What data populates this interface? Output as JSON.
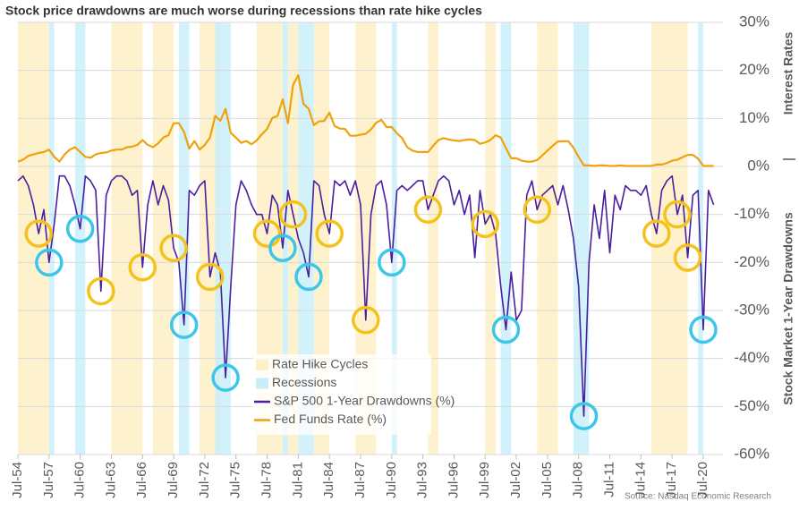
{
  "chart_data": {
    "type": "line",
    "title": "Stock price drawdowns are much worse during recessions than rate hike cycles",
    "source": "Source: Nasdaq Economic Research",
    "y_axis_labels": [
      "Interest Rates",
      "Stock Market 1-Year Drawdowns"
    ],
    "x": [
      "Jul-54",
      "Jan-55",
      "Jul-55",
      "Jan-56",
      "Jul-56",
      "Jan-57",
      "Jul-57",
      "Jan-58",
      "Jul-58",
      "Jan-59",
      "Jul-59",
      "Jan-60",
      "Jul-60",
      "Jan-61",
      "Jul-61",
      "Jan-62",
      "Jul-62",
      "Jan-63",
      "Jul-63",
      "Jan-64",
      "Jul-64",
      "Jan-65",
      "Jul-65",
      "Jan-66",
      "Jul-66",
      "Jan-67",
      "Jul-67",
      "Jan-68",
      "Jul-68",
      "Jan-69",
      "Jul-69",
      "Jan-70",
      "Jul-70",
      "Jan-71",
      "Jul-71",
      "Jan-72",
      "Jul-72",
      "Jan-73",
      "Jul-73",
      "Jan-74",
      "Jul-74",
      "Jan-75",
      "Jul-75",
      "Jan-76",
      "Jul-76",
      "Jan-77",
      "Jul-77",
      "Jan-78",
      "Jul-78",
      "Jan-79",
      "Jul-79",
      "Jan-80",
      "Jul-80",
      "Jan-81",
      "Jul-81",
      "Jan-82",
      "Jul-82",
      "Jan-83",
      "Jul-83",
      "Jan-84",
      "Jul-84",
      "Jan-85",
      "Jul-85",
      "Jan-86",
      "Jul-86",
      "Jan-87",
      "Jul-87",
      "Jan-88",
      "Jul-88",
      "Jan-89",
      "Jul-89",
      "Jan-90",
      "Jul-90",
      "Jan-91",
      "Jul-91",
      "Jan-92",
      "Jul-92",
      "Jan-93",
      "Jul-93",
      "Jan-94",
      "Jul-94",
      "Jan-95",
      "Jul-95",
      "Jan-96",
      "Jul-96",
      "Jan-97",
      "Jul-97",
      "Jan-98",
      "Jul-98",
      "Jan-99",
      "Jul-99",
      "Jan-00",
      "Jul-00",
      "Jan-01",
      "Jul-01",
      "Jan-02",
      "Jul-02",
      "Jan-03",
      "Jul-03",
      "Jan-04",
      "Jul-04",
      "Jan-05",
      "Jul-05",
      "Jan-06",
      "Jul-06",
      "Jan-07",
      "Jul-07",
      "Jan-08",
      "Jul-08",
      "Jan-09",
      "Jul-09",
      "Jan-10",
      "Jul-10",
      "Jan-11",
      "Jul-11",
      "Jan-12",
      "Jul-12",
      "Jan-13",
      "Jul-13",
      "Jan-14",
      "Jul-14",
      "Jan-15",
      "Jul-15",
      "Jan-16",
      "Jul-16",
      "Jan-17",
      "Jul-17",
      "Jan-18",
      "Jul-18",
      "Jan-19",
      "Jul-19",
      "Jan-20",
      "Jul-20",
      "Jan-21",
      "Jul-21"
    ],
    "xticks": [
      "Jul-54",
      "Jul-57",
      "Jul-60",
      "Jul-63",
      "Jul-66",
      "Jul-69",
      "Jul-72",
      "Jul-75",
      "Jul-78",
      "Jul-81",
      "Jul-84",
      "Jul-87",
      "Jul-90",
      "Jul-93",
      "Jul-96",
      "Jul-99",
      "Jul-02",
      "Jul-05",
      "Jul-08",
      "Jul-11",
      "Jul-14",
      "Jul-17",
      "Jul-20"
    ],
    "series": [
      {
        "name": "S&P 500 1-Year Drawdowns (%)",
        "color": "#4a1f9e",
        "values": [
          -3,
          -2,
          -4,
          -8,
          -14,
          -9,
          -20,
          -12,
          -2,
          -2,
          -4,
          -8,
          -13,
          -2,
          -3,
          -5,
          -26,
          -6,
          -3,
          -2,
          -2,
          -3,
          -6,
          -5,
          -21,
          -8,
          -3,
          -8,
          -4,
          -7,
          -17,
          -20,
          -33,
          -5,
          -6,
          -4,
          -3,
          -23,
          -18,
          -22,
          -44,
          -25,
          -8,
          -3,
          -5,
          -8,
          -10,
          -10,
          -14,
          -6,
          -8,
          -17,
          -5,
          -10,
          -15,
          -18,
          -23,
          -3,
          -4,
          -10,
          -14,
          -3,
          -4,
          -3,
          -6,
          -3,
          -8,
          -32,
          -10,
          -4,
          -3,
          -8,
          -20,
          -5,
          -4,
          -5,
          -4,
          -3,
          -3,
          -9,
          -6,
          -3,
          -2,
          -3,
          -8,
          -5,
          -10,
          -6,
          -19,
          -5,
          -12,
          -10,
          -14,
          -25,
          -34,
          -22,
          -32,
          -30,
          -6,
          -3,
          -9,
          -6,
          -5,
          -4,
          -8,
          -4,
          -9,
          -15,
          -25,
          -52,
          -20,
          -8,
          -15,
          -5,
          -18,
          -6,
          -9,
          -4,
          -5,
          -5,
          -6,
          -4,
          -10,
          -14,
          -5,
          -3,
          -2,
          -10,
          -6,
          -19,
          -6,
          -5,
          -34,
          -5,
          -8
        ]
      },
      {
        "name": "Fed Funds Rate (%)",
        "color": "#f0a20c",
        "values": [
          1.0,
          1.4,
          2.2,
          2.5,
          2.8,
          3.0,
          3.5,
          2.0,
          1.0,
          2.5,
          3.5,
          4.0,
          3.0,
          2.0,
          1.8,
          2.5,
          2.8,
          2.9,
          3.3,
          3.5,
          3.5,
          4.0,
          4.1,
          4.5,
          5.5,
          4.5,
          4.0,
          4.8,
          6.0,
          6.5,
          9.0,
          9.0,
          7.2,
          3.7,
          5.3,
          3.5,
          4.5,
          6.0,
          10.5,
          9.5,
          12.0,
          7.0,
          6.0,
          4.9,
          5.3,
          4.6,
          5.4,
          6.7,
          7.8,
          10.1,
          10.5,
          14.0,
          9.0,
          17.0,
          19.0,
          13.0,
          12.0,
          8.6,
          9.4,
          9.5,
          11.2,
          8.4,
          7.9,
          7.8,
          6.4,
          6.4,
          6.6,
          6.8,
          7.7,
          9.1,
          9.7,
          8.2,
          8.2,
          6.9,
          5.9,
          4.0,
          3.3,
          3.0,
          3.0,
          3.0,
          4.3,
          5.5,
          5.9,
          5.6,
          5.4,
          5.3,
          5.5,
          5.6,
          5.5,
          4.7,
          5.0,
          5.5,
          6.5,
          6.0,
          3.8,
          1.7,
          1.7,
          1.2,
          1.0,
          1.0,
          1.3,
          2.3,
          3.3,
          4.3,
          5.2,
          5.25,
          5.25,
          3.9,
          2.0,
          0.2,
          0.2,
          0.1,
          0.2,
          0.2,
          0.1,
          0.1,
          0.2,
          0.1,
          0.1,
          0.1,
          0.1,
          0.1,
          0.1,
          0.4,
          0.4,
          0.7,
          1.2,
          1.4,
          1.9,
          2.4,
          2.4,
          1.6,
          0.1,
          0.1,
          0.1
        ]
      }
    ],
    "bands": [
      {
        "name": "Rate Hike Cycles",
        "color": "#fdf0c4",
        "ranges": [
          [
            "Jul-54",
            "Jul-57"
          ],
          [
            "Jul-63",
            "Jul-66"
          ],
          [
            "Jul-67",
            "Jul-69"
          ],
          [
            "Jan-72",
            "Jan-74"
          ],
          [
            "Jul-77",
            "Jan-80"
          ],
          [
            "Jul-80",
            "Jul-81"
          ],
          [
            "Jan-83",
            "Jul-84"
          ],
          [
            "Jan-87",
            "Jan-89"
          ],
          [
            "Jan-94",
            "Jan-95"
          ],
          [
            "Jul-99",
            "Jul-00"
          ],
          [
            "Jul-04",
            "Jul-06"
          ],
          [
            "Jul-15",
            "Jan-19"
          ]
        ]
      },
      {
        "name": "Recessions",
        "color": "#c9eefa",
        "ranges": [
          [
            "Jul-57",
            "Jan-58"
          ],
          [
            "Jan-60",
            "Jan-61"
          ],
          [
            "Jan-70",
            "Jan-71"
          ],
          [
            "Jul-73",
            "Jan-75"
          ],
          [
            "Jan-80",
            "Jul-80"
          ],
          [
            "Jul-81",
            "Jan-83"
          ],
          [
            "Jul-90",
            "Jan-91"
          ],
          [
            "Jan-01",
            "Jan-02"
          ],
          [
            "Jan-08",
            "Jul-09"
          ],
          [
            "Jan-20",
            "Jul-20"
          ]
        ]
      }
    ],
    "rate_hike_troughs": {
      "color": "#f5c21b",
      "x": [
        "Jul-56",
        "Jul-62",
        "Jul-66",
        "Jul-69",
        "Jan-73",
        "Jul-78",
        "Jan-81",
        "Jul-84",
        "Jan-88",
        "Jan-94",
        "Jul-99",
        "Jul-04",
        "Jan-16",
        "Jan-18",
        "Jan-19"
      ]
    },
    "recession_troughs": {
      "color": "#3cc6ea",
      "x": [
        "Jul-57",
        "Jul-60",
        "Jul-70",
        "Jul-74",
        "Jan-80",
        "Jul-82",
        "Jul-90",
        "Jul-01",
        "Jan-09",
        "Jul-20"
      ]
    },
    "ylim": [
      -60,
      30
    ],
    "yticks": [
      {
        "value": -60,
        "label": "-60%"
      },
      {
        "value": -50,
        "label": "-50%"
      },
      {
        "value": -40,
        "label": "-40%"
      },
      {
        "value": -30,
        "label": "-30%"
      },
      {
        "value": -20,
        "label": "-20%"
      },
      {
        "value": -10,
        "label": "-10%"
      },
      {
        "value": 0,
        "label": "0%"
      },
      {
        "value": 10,
        "label": "10%"
      },
      {
        "value": 20,
        "label": "20%"
      },
      {
        "value": 30,
        "label": "30%"
      }
    ],
    "grid": true,
    "legend": "bottom"
  }
}
